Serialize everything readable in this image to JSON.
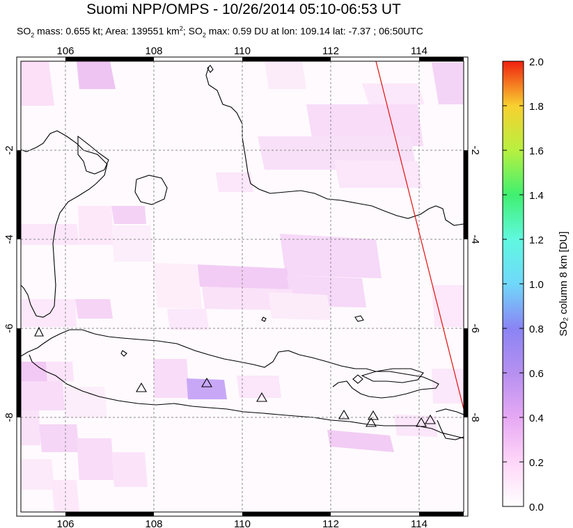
{
  "title": "Suomi NPP/OMPS - 10/26/2014 05:10-06:53 UT",
  "subtitle": {
    "so2_mass_label": "SO",
    "so2_mass_rest": " mass: 0.655 kt; Area: 139551 km",
    "area_rest": "; SO",
    "max_rest": " max: 0.59 DU at lon: 109.14 lat: -7.37 ; 06:50UTC"
  },
  "map": {
    "lon_range": [
      105,
      115
    ],
    "lat_range": [
      -10,
      0
    ],
    "lon_ticks": [
      "106",
      "108",
      "110",
      "112",
      "114"
    ],
    "lat_ticks": [
      "-2",
      "-4",
      "-6",
      "-8"
    ],
    "lon_values": [
      106,
      108,
      110,
      112,
      114
    ],
    "lat_values": [
      -2,
      -4,
      -6,
      -8
    ],
    "volcano_count": 10,
    "max_pixel": {
      "lon": 109.14,
      "lat": -7.37,
      "value_du": 0.59
    }
  },
  "colorbar": {
    "label": "SO₂ column 8 km [DU]",
    "ticks": [
      "0.0",
      "0.2",
      "0.4",
      "0.6",
      "0.8",
      "1.0",
      "1.2",
      "1.4",
      "1.6",
      "1.8",
      "2.0"
    ],
    "colors": [
      "#ffffff",
      "#ffd6f8",
      "#d890f0",
      "#8a80f0",
      "#60d8f8",
      "#70f8f0",
      "#40f070",
      "#a0f040",
      "#f8f040",
      "#f8a020",
      "#f02010"
    ]
  }
}
